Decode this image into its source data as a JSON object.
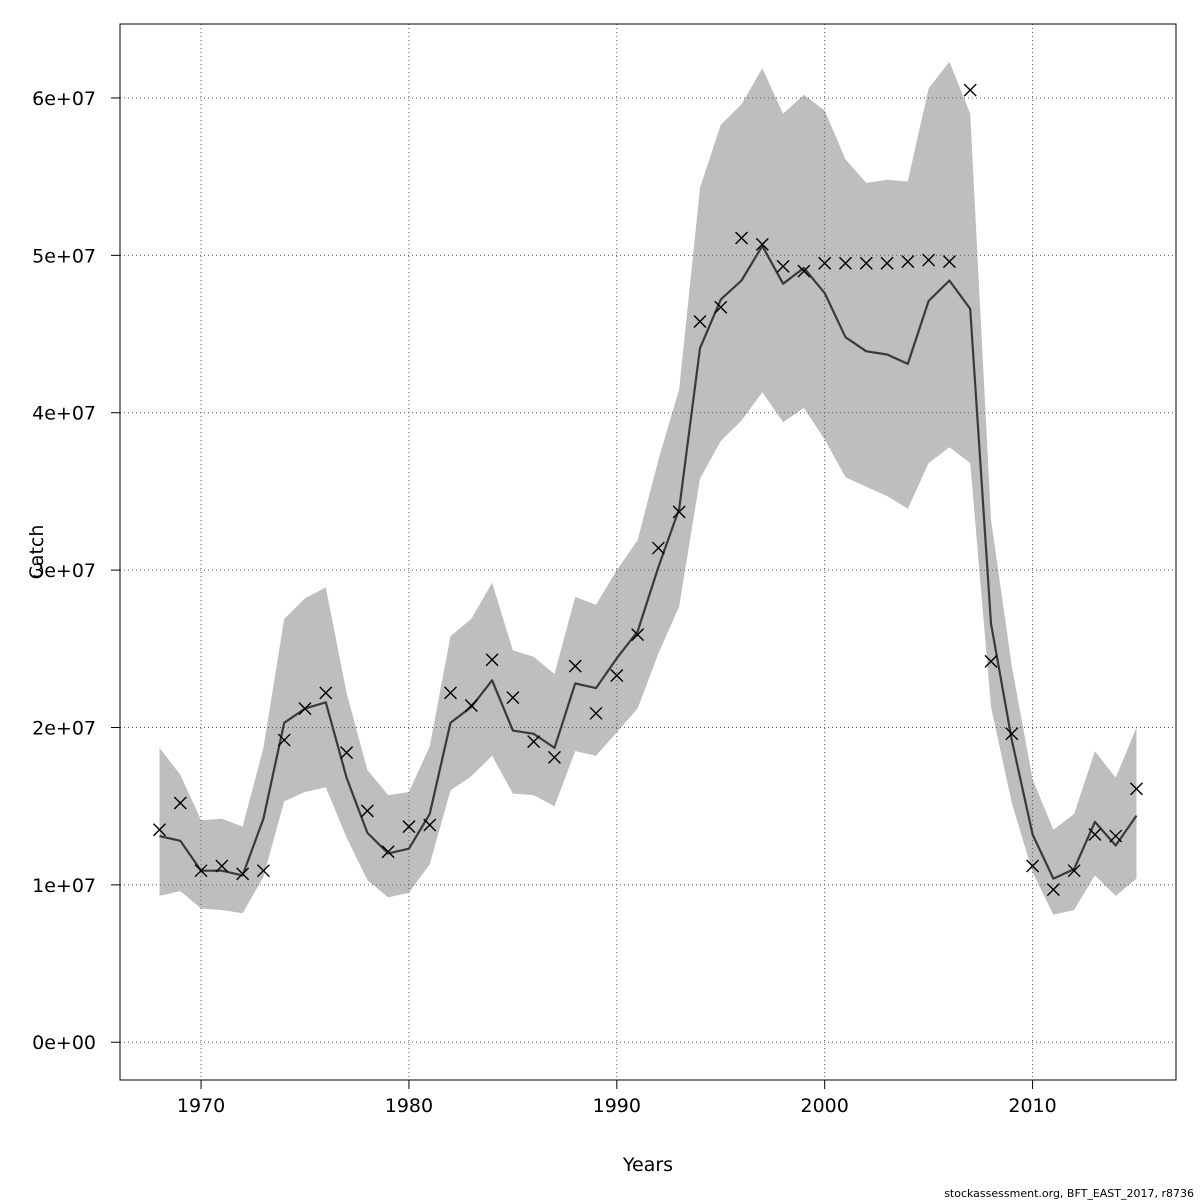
{
  "credit": "stockassessment.org, BFT_EAST_2017, r8736",
  "chart_data": {
    "type": "line",
    "title": "",
    "xlabel": "Years",
    "ylabel": "Catch",
    "xlim": [
      1966.1,
      2016.9
    ],
    "ylim": [
      -2400000,
      64700000
    ],
    "x_ticks": [
      1970,
      1980,
      1990,
      2000,
      2010
    ],
    "x_tick_labels": [
      "1970",
      "1980",
      "1990",
      "2000",
      "2010"
    ],
    "y_ticks": [
      0,
      10000000,
      20000000,
      30000000,
      40000000,
      50000000,
      60000000
    ],
    "y_tick_labels": [
      "0e+00",
      "1e+07",
      "2e+07",
      "3e+07",
      "4e+07",
      "5e+07",
      "6e+07"
    ],
    "grid": true,
    "colors": {
      "band": "#bebebe",
      "line": "#3a3a3a",
      "points": "#000000",
      "grid": "#555555"
    },
    "x": [
      1968,
      1969,
      1970,
      1971,
      1972,
      1973,
      1974,
      1975,
      1976,
      1977,
      1978,
      1979,
      1980,
      1981,
      1982,
      1983,
      1984,
      1985,
      1986,
      1987,
      1988,
      1989,
      1990,
      1991,
      1992,
      1993,
      1994,
      1995,
      1996,
      1997,
      1998,
      1999,
      2000,
      2001,
      2002,
      2003,
      2004,
      2005,
      2006,
      2007,
      2008,
      2009,
      2010,
      2011,
      2012,
      2013,
      2014,
      2015
    ],
    "series": [
      {
        "type": "area_band",
        "lower": [
          9300000,
          9600000,
          8500000,
          8400000,
          8200000,
          10500000,
          15300000,
          15900000,
          16200000,
          13000000,
          10300000,
          9200000,
          9500000,
          11300000,
          16000000,
          16900000,
          18200000,
          15800000,
          15700000,
          15000000,
          18500000,
          18200000,
          19700000,
          21200000,
          24700000,
          27700000,
          35800000,
          38200000,
          39500000,
          41300000,
          39400000,
          40300000,
          38300000,
          35900000,
          35300000,
          34700000,
          33900000,
          36800000,
          37800000,
          36800000,
          21300000,
          15200000,
          10800000,
          8100000,
          8400000,
          10600000,
          9300000,
          10400000
        ],
        "upper": [
          18700000,
          17000000,
          14100000,
          14200000,
          13700000,
          18700000,
          26900000,
          28200000,
          28900000,
          22200000,
          17300000,
          15700000,
          15900000,
          18800000,
          25800000,
          26900000,
          29200000,
          24900000,
          24500000,
          23400000,
          28300000,
          27800000,
          30000000,
          31900000,
          37000000,
          41500000,
          54300000,
          58300000,
          59600000,
          61900000,
          59000000,
          60200000,
          59200000,
          56100000,
          54600000,
          54800000,
          54700000,
          60600000,
          62300000,
          59000000,
          33200000,
          23900000,
          16700000,
          13500000,
          14500000,
          18500000,
          16800000,
          20000000
        ]
      },
      {
        "type": "line",
        "values": [
          13100000,
          12800000,
          10900000,
          10900000,
          10600000,
          14200000,
          20300000,
          21200000,
          21600000,
          16800000,
          13300000,
          12000000,
          12300000,
          14500000,
          20300000,
          21300000,
          23000000,
          19800000,
          19600000,
          18700000,
          22800000,
          22500000,
          24400000,
          26100000,
          30200000,
          33900000,
          44100000,
          47200000,
          48400000,
          50600000,
          48200000,
          49200000,
          47600000,
          44800000,
          43900000,
          43700000,
          43100000,
          47100000,
          48400000,
          46600000,
          26600000,
          19200000,
          13200000,
          10400000,
          11000000,
          14000000,
          12500000,
          14400000
        ]
      },
      {
        "type": "scatter",
        "marker": "x",
        "values": [
          13500000,
          15200000,
          10900000,
          11200000,
          10700000,
          10900000,
          19200000,
          21200000,
          22200000,
          18400000,
          14700000,
          12100000,
          13700000,
          13800000,
          22200000,
          21400000,
          24300000,
          21900000,
          19100000,
          18100000,
          23900000,
          20900000,
          23300000,
          25900000,
          31400000,
          33700000,
          45800000,
          46700000,
          51100000,
          50700000,
          49300000,
          49000000,
          49500000,
          49500000,
          49500000,
          49500000,
          49600000,
          49700000,
          49600000,
          60500000,
          24200000,
          19600000,
          11200000,
          9700000,
          10900000,
          13200000,
          13100000,
          16100000
        ]
      }
    ]
  }
}
